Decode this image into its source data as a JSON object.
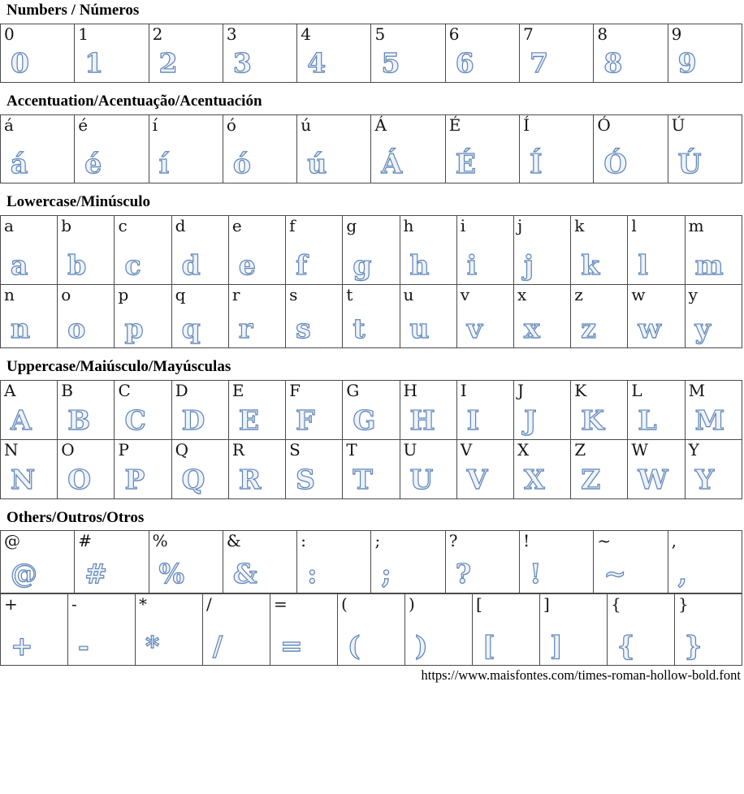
{
  "page": {
    "footer_url": "https://www.maisfontes.com/times-roman-hollow-bold.font",
    "hollow_stroke_color": "#5e84b8",
    "hollow_fill_color": "#eef3f9",
    "border_color": "#4a4a4a",
    "text_color": "#141414"
  },
  "sections": [
    {
      "id": "numbers",
      "title": "Numbers / Números",
      "tables": [
        {
          "rows": [
            [
              "0",
              "1",
              "2",
              "3",
              "4",
              "5",
              "6",
              "7",
              "8",
              "9"
            ]
          ]
        }
      ]
    },
    {
      "id": "accentuation",
      "title": "Accentuation/Acentuação/Acentuación",
      "tables": [
        {
          "rows": [
            [
              "á",
              "é",
              "í",
              "ó",
              "ú",
              "Á",
              "É",
              "Í",
              "Ó",
              "Ú"
            ]
          ]
        }
      ]
    },
    {
      "id": "lowercase",
      "title": "Lowercase/Minúsculo",
      "tables": [
        {
          "rows": [
            [
              "a",
              "b",
              "c",
              "d",
              "e",
              "f",
              "g",
              "h",
              "i",
              "j",
              "k",
              "l",
              "m"
            ],
            [
              "n",
              "o",
              "p",
              "q",
              "r",
              "s",
              "t",
              "u",
              "v",
              "x",
              "z",
              "w",
              "y"
            ]
          ]
        }
      ]
    },
    {
      "id": "uppercase",
      "title": "Uppercase/Maiúsculo/Mayúsculas",
      "tables": [
        {
          "rows": [
            [
              "A",
              "B",
              "C",
              "D",
              "E",
              "F",
              "G",
              "H",
              "I",
              "J",
              "K",
              "L",
              "M"
            ],
            [
              "N",
              "O",
              "P",
              "Q",
              "R",
              "S",
              "T",
              "U",
              "V",
              "X",
              "Z",
              "W",
              "Y"
            ]
          ]
        }
      ]
    },
    {
      "id": "others",
      "title": "Others/Outros/Otros",
      "tables": [
        {
          "rows": [
            [
              "@",
              "#",
              "%",
              "&",
              ":",
              ";",
              "?",
              "!",
              "~",
              ","
            ]
          ]
        },
        {
          "rows": [
            [
              "+",
              "-",
              "*",
              "/",
              "=",
              "(",
              ")",
              "[",
              "]",
              "{",
              "}"
            ]
          ]
        }
      ]
    }
  ]
}
